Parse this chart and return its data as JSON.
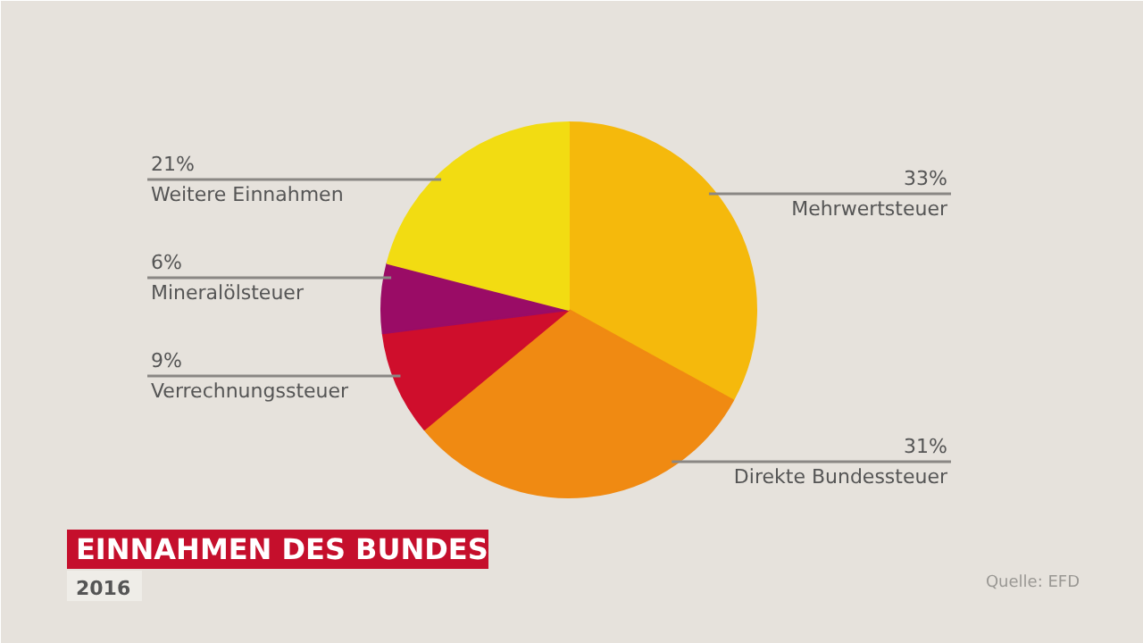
{
  "chart_data": {
    "type": "pie",
    "title": "EINNAHMEN DES BUNDES",
    "subtitle": "2016",
    "categories": [
      "Mehrwertsteuer",
      "Direkte Bundessteuer",
      "Verrechnungssteuer",
      "Mineralölsteuer",
      "Weitere Einnahmen"
    ],
    "values": [
      33,
      31,
      9,
      6,
      21
    ],
    "value_labels": [
      "33%",
      "31%",
      "9%",
      "6%",
      "21%"
    ],
    "colors": [
      "#f5b90c",
      "#f08a12",
      "#cf0e2c",
      "#9a0c66",
      "#f2dc12"
    ],
    "annotations": [
      "Quelle: EFD"
    ]
  }
}
